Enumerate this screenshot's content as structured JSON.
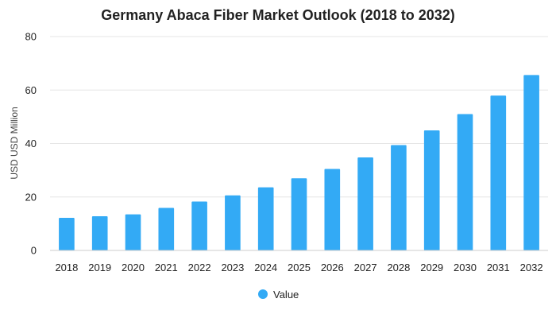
{
  "chart_data": {
    "type": "bar",
    "title": "Germany Abaca Fiber Market Outlook (2018 to 2032)",
    "xlabel": "",
    "ylabel": "USD USD Million",
    "categories": [
      "2018",
      "2019",
      "2020",
      "2021",
      "2022",
      "2023",
      "2024",
      "2025",
      "2026",
      "2027",
      "2028",
      "2029",
      "2030",
      "2031",
      "2032"
    ],
    "series": [
      {
        "name": "Value",
        "values": [
          12.2,
          12.8,
          13.5,
          15.9,
          18.3,
          20.6,
          23.6,
          27.0,
          30.5,
          34.8,
          39.4,
          44.9,
          51.0,
          57.9,
          65.6
        ]
      }
    ],
    "ylim": [
      0,
      80
    ],
    "yticks": [
      0,
      20,
      40,
      60,
      80
    ],
    "grid": true,
    "legend_position": "bottom",
    "colors": {
      "bar": "#33aaf5"
    }
  }
}
